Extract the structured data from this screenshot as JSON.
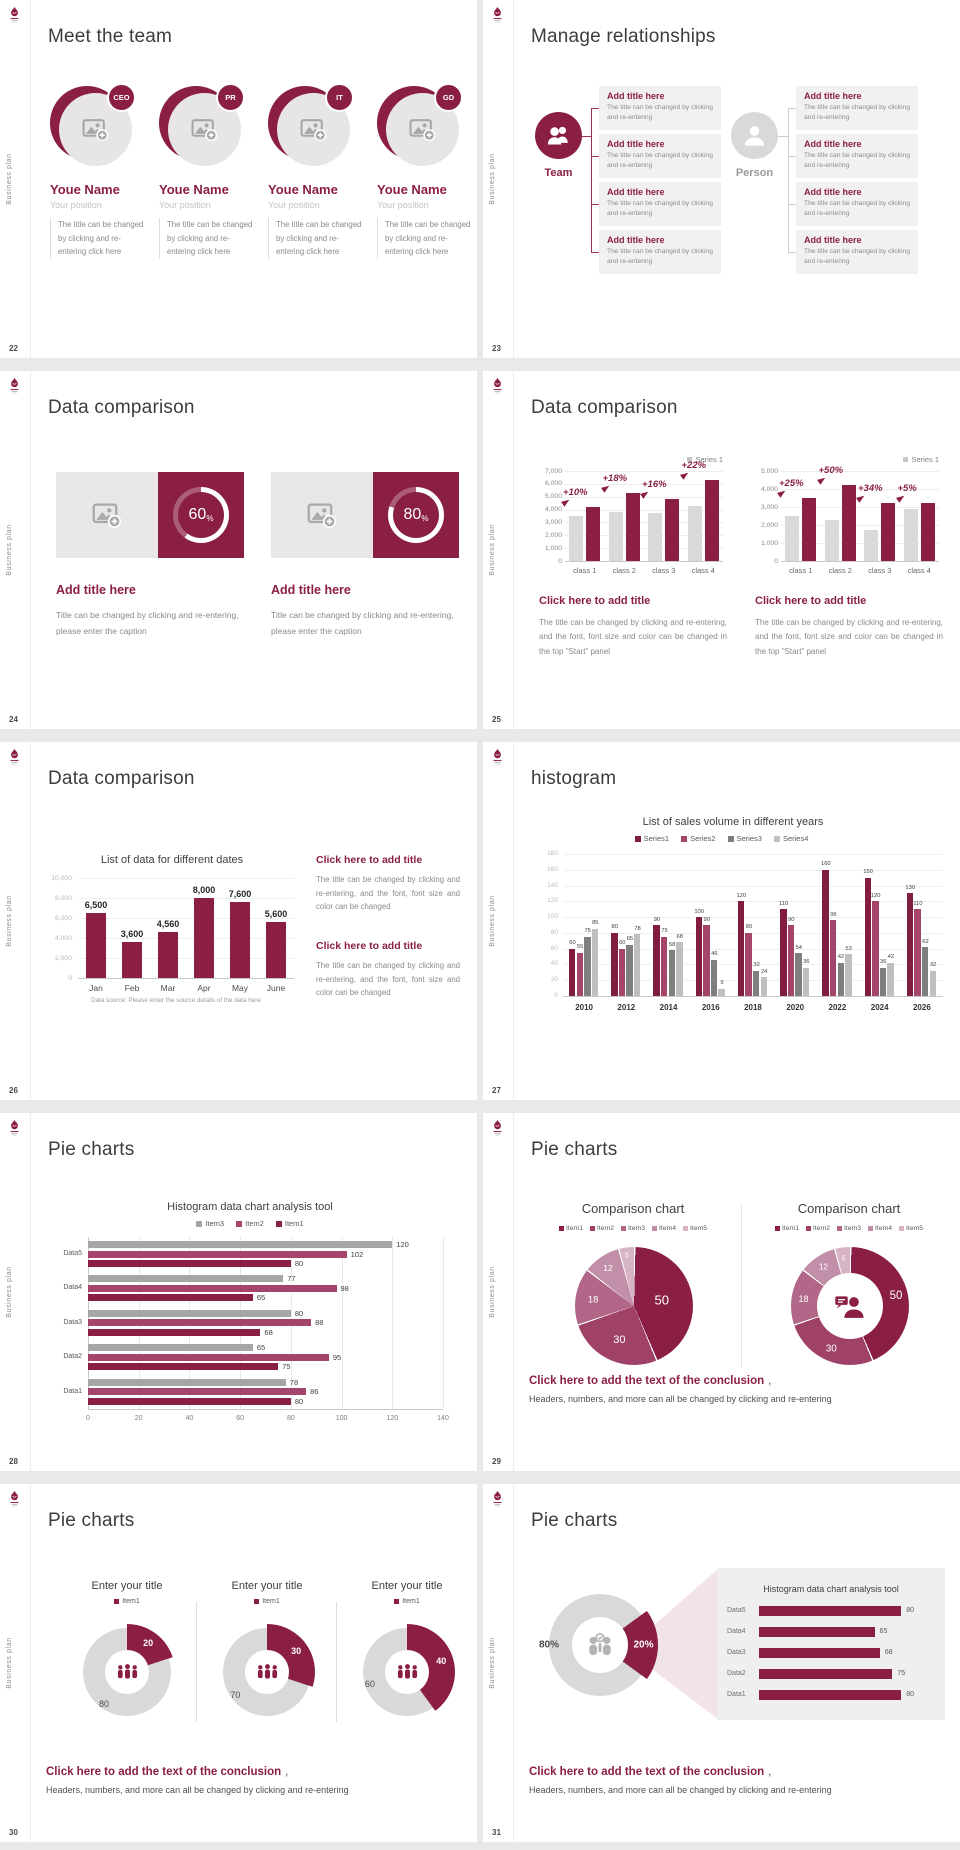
{
  "window": {
    "background": "#e9e9e9"
  },
  "common": {
    "vertical_label": "Business plan",
    "logo": "business-plan-crest"
  },
  "palette": {
    "maroon": "#8a1e45",
    "maroon_dark": "#821d42",
    "pink": "#a6456b",
    "pie_colors": [
      "#8a1e45",
      "#a04268",
      "#b26688",
      "#c28fa9",
      "#d6b4c6"
    ],
    "bar_gray": "#d9d9d9",
    "gray_mid": "#a6a6a6",
    "gray_dark": "#7f7f7f",
    "gray_light": "#bfbfbf",
    "box_bg": "#f1f1f1",
    "panel_bg": "#efefef",
    "beam": "#f2e2ea"
  },
  "slides": {
    "s22": {
      "page_number": "22",
      "title": "Meet the team",
      "members": [
        {
          "badge": "CEO",
          "name": "Youe Name",
          "position": "Your position",
          "body": "The title can be changed by clicking and re-entering click here"
        },
        {
          "badge": "PR",
          "name": "Youe Name",
          "position": "Your position",
          "body": "The title can be changed by clicking and re-entering click here"
        },
        {
          "badge": "IT",
          "name": "Youe Name",
          "position": "Your position",
          "body": "The title can be changed by clicking and re-entering click here"
        },
        {
          "badge": "GD",
          "name": "Youe Name",
          "position": "Your position",
          "body": "The title can be changed by clicking and re-entering click here"
        }
      ]
    },
    "s23": {
      "page_number": "23",
      "title": "Manage relationships",
      "groups": [
        {
          "label": "Team",
          "icon": "team-icon",
          "item_title": "Add title here",
          "item_body": "The title can be changed by clicking and re-entering",
          "count": 4
        },
        {
          "label": "Person",
          "icon": "person-icon",
          "item_title": "Add title here",
          "item_body": "The title can be changed by clicking and re-entering",
          "count": 4
        }
      ]
    },
    "s24": {
      "page_number": "24",
      "title": "Data comparison",
      "cards": [
        {
          "percent": 60,
          "percent_text": "60",
          "percent_sign": "%",
          "title": "Add title here",
          "body": "Title can be changed by clicking and re-entering, please enter the caption"
        },
        {
          "percent": 80,
          "percent_text": "80",
          "percent_sign": "%",
          "title": "Add title here",
          "body": "Title can be changed by clicking and re-entering, please enter the caption"
        }
      ]
    },
    "s25": {
      "page_number": "25",
      "title": "Data comparison",
      "blocks": [
        {
          "title": "Click here to add title",
          "body": "The title can be changed by clicking and re-entering, and the font, font size and color can be changed in the top \"Start\" panel"
        },
        {
          "title": "Click here to add title",
          "body": "The title can be changed by clicking and re-entering, and the font, font size and color can be changed in the top \"Start\" panel"
        }
      ]
    },
    "s26": {
      "page_number": "26",
      "title": "Data comparison",
      "blocks": [
        {
          "title": "Click here to add title",
          "body": "The title can be changed by clicking and re-entering, and the font, font size and color can be changed"
        },
        {
          "title": "Click here to add title",
          "body": "The title can be changed by clicking and re-entering, and the font, font size and color can be changed"
        }
      ]
    },
    "s27": {
      "page_number": "27",
      "title": "histogram"
    },
    "s28": {
      "page_number": "28",
      "title": "Pie charts"
    },
    "s29": {
      "page_number": "29",
      "title": "Pie charts",
      "conclusion_title": "Click here to add the text of the conclusion",
      "conclusion_comma": ",",
      "conclusion_body": "Headers, numbers, and more can all be changed by clicking and re-entering"
    },
    "s30": {
      "page_number": "30",
      "title": "Pie charts",
      "conclusion_title": "Click here to add the text of the conclusion",
      "conclusion_comma": ",",
      "conclusion_body": "Headers, numbers, and more can all be changed by clicking and re-entering"
    },
    "s31": {
      "page_number": "31",
      "title": "Pie charts",
      "conclusion_title": "Click here to add the text of the conclusion",
      "conclusion_comma": ",",
      "conclusion_body": "Headers, numbers, and more can all be changed by clicking and re-entering"
    }
  },
  "chart_data": [
    {
      "slide": "24",
      "type": "pie",
      "variant": "progress-donut",
      "values": [
        60,
        40
      ],
      "label": "60%"
    },
    {
      "slide": "24",
      "type": "pie",
      "variant": "progress-donut",
      "values": [
        80,
        20
      ],
      "label": "80%"
    },
    {
      "slide": "25",
      "position": "left",
      "type": "bar",
      "title": "",
      "legend": [
        "Series 1"
      ],
      "legend_position": "top-right",
      "categories": [
        "class 1",
        "class 2",
        "class 3",
        "class 4"
      ],
      "series": [
        {
          "name": "base",
          "values": [
            3500,
            3800,
            3700,
            4300
          ]
        },
        {
          "name": "Series 1",
          "values": [
            4200,
            5300,
            4800,
            6300
          ]
        }
      ],
      "growth_labels": [
        "+10%",
        "+18%",
        "+16%",
        "+22%"
      ],
      "ylim": [
        0,
        7000
      ],
      "ytick_labels": [
        "7,000",
        "6,000",
        "5,000",
        "4,000",
        "3,000",
        "2,000",
        "1,000",
        "0"
      ],
      "grid": true
    },
    {
      "slide": "25",
      "position": "right",
      "type": "bar",
      "title": "",
      "legend": [
        "Series 1"
      ],
      "legend_position": "top-right",
      "categories": [
        "class 1",
        "class 2",
        "class 3",
        "class 4"
      ],
      "series": [
        {
          "name": "base",
          "values": [
            2500,
            2300,
            1750,
            2900
          ]
        },
        {
          "name": "Series 1",
          "values": [
            3500,
            4200,
            3200,
            3200
          ]
        }
      ],
      "growth_labels": [
        "+25%",
        "+50%",
        "+34%",
        "+5%"
      ],
      "ylim": [
        0,
        5000
      ],
      "ytick_labels": [
        "5,000",
        "4,000",
        "3,000",
        "2,000",
        "1,000",
        "0"
      ],
      "grid": true
    },
    {
      "slide": "26",
      "type": "bar",
      "title": "List of data for different dates",
      "categories": [
        "Jan",
        "Feb",
        "Mar",
        "Apr",
        "May",
        "June"
      ],
      "values": [
        6500,
        3600,
        4560,
        8000,
        7600,
        5600
      ],
      "value_labels": [
        "6,500",
        "3,600",
        "4,560",
        "8,000",
        "7,600",
        "5,600"
      ],
      "ylim": [
        0,
        10000
      ],
      "ytick_labels": [
        "10,000",
        "8,000",
        "6,000",
        "4,000",
        "2,000",
        "0"
      ],
      "footnote": "Data source: Please enter the source details of the data here",
      "grid": true
    },
    {
      "slide": "27",
      "type": "bar",
      "title": "List of sales volume in different years",
      "categories": [
        "2010",
        "2012",
        "2014",
        "2016",
        "2018",
        "2020",
        "2022",
        "2024",
        "2026"
      ],
      "series": [
        {
          "name": "Series1",
          "values": [
            60,
            80,
            90,
            100,
            120,
            110,
            160,
            150,
            130
          ]
        },
        {
          "name": "Series2",
          "values": [
            55,
            60,
            75,
            90,
            80,
            90,
            96,
            120,
            110
          ]
        },
        {
          "name": "Series3",
          "values": [
            75,
            65,
            58,
            46,
            32,
            54,
            42,
            36,
            62
          ]
        },
        {
          "name": "Series4",
          "values": [
            85,
            78,
            68,
            9,
            24,
            36,
            53,
            42,
            32
          ]
        }
      ],
      "ylim": [
        0,
        180
      ],
      "ytick_step": 20,
      "legend_position": "top-center",
      "grid": true
    },
    {
      "slide": "28",
      "type": "bar",
      "orientation": "horizontal",
      "title": "Histogram data chart analysis tool",
      "legend": [
        "Item3",
        "Item2",
        "Item1"
      ],
      "categories": [
        "Data5",
        "Data4",
        "Data3",
        "Data2",
        "Data1"
      ],
      "series": [
        {
          "name": "Item3",
          "values": [
            120,
            77,
            80,
            65,
            78
          ]
        },
        {
          "name": "Item2",
          "values": [
            102,
            98,
            88,
            95,
            86
          ]
        },
        {
          "name": "Item1",
          "values": [
            80,
            65,
            68,
            75,
            80
          ]
        }
      ],
      "xlim": [
        0,
        140
      ],
      "xtick_step": 20,
      "grid": true
    },
    {
      "slide": "29",
      "position": "left",
      "type": "pie",
      "title": "Comparison chart",
      "legend": [
        "Item1",
        "Item2",
        "Item3",
        "Item4",
        "Item5"
      ],
      "values": [
        50,
        30,
        18,
        12,
        5
      ]
    },
    {
      "slide": "29",
      "position": "right",
      "type": "pie",
      "variant": "donut",
      "title": "Comparison chart",
      "legend": [
        "Item1",
        "Item2",
        "Item3",
        "Item4",
        "Item5"
      ],
      "values": [
        50,
        30,
        18,
        12,
        5
      ],
      "center_icon": "person-chat-icon"
    },
    {
      "slide": "30",
      "position": "left",
      "type": "pie",
      "variant": "donut",
      "title": "Enter your title",
      "legend": [
        "Item1"
      ],
      "values": [
        20,
        80
      ],
      "value_labels": [
        "20",
        "80"
      ],
      "center_icon": "people-group-icon"
    },
    {
      "slide": "30",
      "position": "center",
      "type": "pie",
      "variant": "donut",
      "title": "Enter your title",
      "legend": [
        "Item1"
      ],
      "values": [
        30,
        70
      ],
      "value_labels": [
        "30",
        "70"
      ],
      "center_icon": "people-group-icon"
    },
    {
      "slide": "30",
      "position": "right",
      "type": "pie",
      "variant": "donut",
      "title": "Enter your title",
      "legend": [
        "Item1"
      ],
      "values": [
        40,
        60
      ],
      "value_labels": [
        "40",
        "60"
      ],
      "center_icon": "people-group-icon"
    },
    {
      "slide": "31",
      "type": "pie",
      "variant": "donut",
      "values": [
        20,
        80
      ],
      "value_labels": [
        "20%",
        "80%"
      ],
      "center_icon": "team-check-icon"
    },
    {
      "slide": "31",
      "type": "bar",
      "orientation": "horizontal",
      "title": "Histogram data chart analysis tool",
      "categories": [
        "Data5",
        "Data4",
        "Data3",
        "Data2",
        "Data1"
      ],
      "values": [
        80,
        65,
        68,
        75,
        80
      ],
      "xlim": [
        0,
        90
      ]
    }
  ]
}
